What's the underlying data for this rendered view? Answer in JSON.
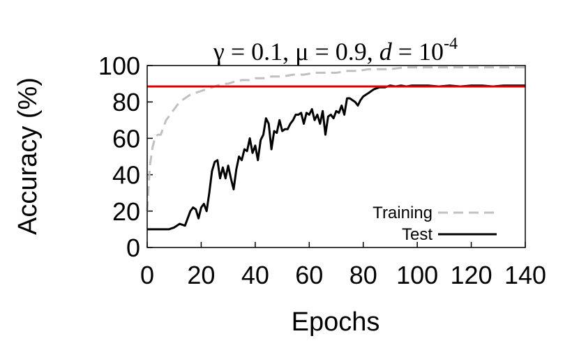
{
  "chart_data": {
    "type": "line",
    "title_parts": {
      "gamma": "γ = 0.1, ",
      "mu": "μ = 0.9, ",
      "d_symbol": "d",
      "d_eq": " = 10",
      "d_exp": "-4"
    },
    "xlabel": "Epochs",
    "ylabel": "Accuracy (%)",
    "xlim": [
      0,
      140
    ],
    "ylim": [
      0,
      100
    ],
    "xticks": [
      0,
      20,
      40,
      60,
      80,
      100,
      120,
      140
    ],
    "yticks": [
      0,
      20,
      40,
      60,
      80,
      100
    ],
    "grid": false,
    "legend_position": "bottom-right",
    "reference_line": {
      "y": 88.5,
      "color": "#e00000"
    },
    "series": [
      {
        "name": "Training",
        "style": "dashed",
        "color": "#c0c0c0",
        "x": [
          0,
          1,
          2,
          3,
          4,
          5,
          6,
          7,
          8,
          10,
          12,
          14,
          16,
          18,
          20,
          22,
          24,
          26,
          28,
          30,
          32,
          35,
          38,
          40,
          43,
          46,
          50,
          54,
          58,
          62,
          66,
          70,
          74,
          78,
          82,
          86,
          90,
          95,
          100,
          110,
          120,
          130,
          140
        ],
        "y": [
          20,
          45,
          55,
          61,
          62,
          62,
          66,
          70,
          72,
          76,
          80,
          82,
          84,
          85,
          86,
          87,
          88,
          89,
          90,
          90,
          91,
          92,
          92,
          93,
          93,
          94,
          94,
          95,
          95,
          96,
          96,
          96,
          97,
          97,
          98,
          98,
          98,
          99,
          99,
          99,
          99,
          99,
          99
        ]
      },
      {
        "name": "Test",
        "style": "solid",
        "color": "#000000",
        "x": [
          0,
          2,
          4,
          6,
          8,
          10,
          12,
          14,
          16,
          17,
          18,
          19,
          20,
          21,
          22,
          23,
          24,
          25,
          26,
          27,
          28,
          29,
          30,
          31,
          32,
          33,
          34,
          35,
          36,
          37,
          38,
          39,
          40,
          41,
          42,
          43,
          44,
          45,
          46,
          47,
          48,
          49,
          50,
          51,
          52,
          53,
          54,
          55,
          56,
          57,
          58,
          59,
          60,
          61,
          62,
          63,
          64,
          65,
          66,
          67,
          68,
          69,
          70,
          71,
          72,
          73,
          74,
          75,
          76,
          77,
          78,
          79,
          80,
          82,
          84,
          86,
          88,
          90,
          92,
          94,
          96,
          98,
          100,
          104,
          108,
          112,
          116,
          120,
          124,
          128,
          132,
          136,
          140
        ],
        "y": [
          10,
          10,
          10,
          10,
          10,
          11,
          13,
          12,
          20,
          22,
          21,
          16,
          22,
          24,
          20,
          30,
          42,
          47,
          48,
          38,
          44,
          38,
          45,
          38,
          32,
          43,
          50,
          48,
          54,
          53,
          60,
          52,
          56,
          48,
          59,
          62,
          71,
          68,
          54,
          64,
          63,
          70,
          64,
          65,
          65,
          68,
          70,
          73,
          73,
          74,
          68,
          74,
          73,
          76,
          70,
          73,
          68,
          75,
          62,
          72,
          73,
          71,
          75,
          74,
          78,
          73,
          82,
          82,
          81,
          80,
          78,
          81,
          83,
          85,
          87,
          88,
          88,
          89,
          88.5,
          89,
          88.5,
          89,
          89,
          89,
          88.5,
          89,
          88.5,
          89,
          89,
          88.5,
          89,
          89,
          89
        ]
      }
    ]
  }
}
